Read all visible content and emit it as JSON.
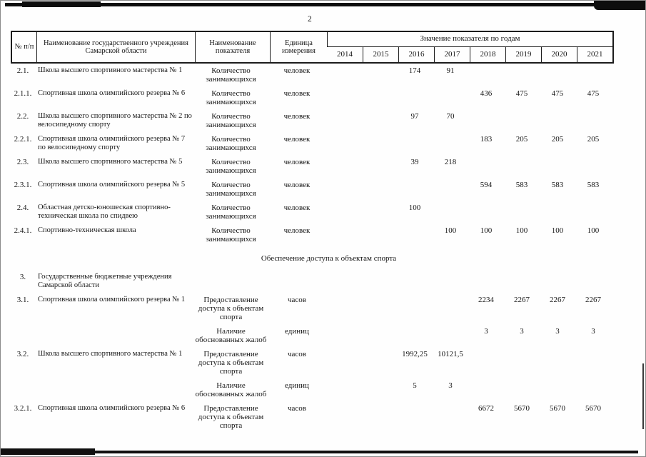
{
  "page": {
    "number": "2"
  },
  "table": {
    "header": {
      "num": "№ п/п",
      "institution": "Наименование государственного учреждения Самарской области",
      "indicator": "Наименование показателя",
      "unit": "Единица измерения",
      "values_group": "Значение показателя по годам"
    },
    "years": [
      "2014",
      "2015",
      "2016",
      "2017",
      "2018",
      "2019",
      "2020",
      "2021"
    ],
    "rows": [
      {
        "type": "data",
        "num": "2.1.",
        "name": "Школа высшего спортивного мастерства № 1",
        "indicator": "Количество занимающихся",
        "unit": "человек",
        "values": [
          "",
          "",
          "174",
          "91",
          "",
          "",
          "",
          ""
        ]
      },
      {
        "type": "data",
        "num": "2.1.1.",
        "name": "Спортивная школа олимпийского резерва № 6",
        "indicator": "Количество занимающихся",
        "unit": "человек",
        "values": [
          "",
          "",
          "",
          "",
          "436",
          "475",
          "475",
          "475"
        ]
      },
      {
        "type": "data",
        "num": "2.2.",
        "name": "Школа высшего спортивного мастерства № 2 по велосипедному спорту",
        "indicator": "Количество занимающихся",
        "unit": "человек",
        "values": [
          "",
          "",
          "97",
          "70",
          "",
          "",
          "",
          ""
        ]
      },
      {
        "type": "data",
        "num": "2.2.1.",
        "name": "Спортивная школа олимпийского резерва № 7 по велосипедному спорту",
        "indicator": "Количество занимающихся",
        "unit": "человек",
        "values": [
          "",
          "",
          "",
          "",
          "183",
          "205",
          "205",
          "205"
        ]
      },
      {
        "type": "data",
        "num": "2.3.",
        "name": "Школа высшего спортивного мастерства № 5",
        "indicator": "Количество занимающихся",
        "unit": "человек",
        "values": [
          "",
          "",
          "39",
          "218",
          "",
          "",
          "",
          ""
        ]
      },
      {
        "type": "data",
        "num": "2.3.1.",
        "name": "Спортивная школа олимпийского резерва № 5",
        "indicator": "Количество занимающихся",
        "unit": "человек",
        "values": [
          "",
          "",
          "",
          "",
          "594",
          "583",
          "583",
          "583"
        ]
      },
      {
        "type": "data",
        "num": "2.4.",
        "name": "Областная детско-юношеская спортивно-техническая школа по спидвею",
        "indicator": "Количество занимающихся",
        "unit": "человек",
        "values": [
          "",
          "",
          "100",
          "",
          "",
          "",
          "",
          ""
        ]
      },
      {
        "type": "data",
        "num": "2.4.1.",
        "name": "Спортивно-техническая школа",
        "indicator": "Количество занимающихся",
        "unit": "человек",
        "values": [
          "",
          "",
          "",
          "100",
          "100",
          "100",
          "100",
          "100"
        ]
      },
      {
        "type": "section",
        "label": "Обеспечение доступа к объектам спорта"
      },
      {
        "type": "data",
        "num": "3.",
        "name": "Государственные бюджетные учреждения Самарской области",
        "indicator": "",
        "unit": "",
        "values": [
          "",
          "",
          "",
          "",
          "",
          "",
          "",
          ""
        ]
      },
      {
        "type": "data",
        "num": "3.1.",
        "name": "Спортивная школа олимпийского резерва № 1",
        "indicator": "Предоставление доступа к объектам спорта",
        "unit": "часов",
        "values": [
          "",
          "",
          "",
          "",
          "2234",
          "2267",
          "2267",
          "2267"
        ]
      },
      {
        "type": "data",
        "num": "",
        "name": "",
        "indicator": "Наличие обоснованных жалоб",
        "unit": "единиц",
        "values": [
          "",
          "",
          "",
          "",
          "3",
          "3",
          "3",
          "3"
        ]
      },
      {
        "type": "data",
        "num": "3.2.",
        "name": "Школа высшего спортивного мастерства № 1",
        "indicator": "Предоставление доступа к объектам спорта",
        "unit": "часов",
        "values": [
          "",
          "",
          "1992,25",
          "10121,5",
          "",
          "",
          "",
          ""
        ]
      },
      {
        "type": "data",
        "num": "",
        "name": "",
        "indicator": "Наличие обоснованных жалоб",
        "unit": "единиц",
        "values": [
          "",
          "",
          "5",
          "3",
          "",
          "",
          "",
          ""
        ]
      },
      {
        "type": "data",
        "num": "3.2.1.",
        "name": "Спортивная школа олимпийского резерва № 6",
        "indicator": "Предоставление доступа к объектам спорта",
        "unit": "часов",
        "values": [
          "",
          "",
          "",
          "",
          "6672",
          "5670",
          "5670",
          "5670"
        ]
      }
    ]
  }
}
